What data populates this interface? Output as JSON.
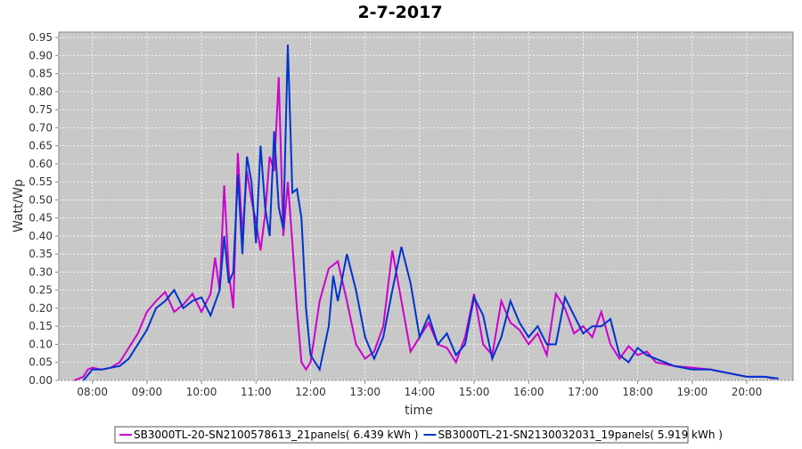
{
  "chart_data": {
    "type": "line",
    "title": "2-7-2017",
    "x_label": "time",
    "y_label": "Watt/Wp",
    "xlim": [
      "07:23",
      "20:51"
    ],
    "xticks": [
      "08:00",
      "09:00",
      "10:00",
      "11:00",
      "12:00",
      "13:00",
      "14:00",
      "15:00",
      "16:00",
      "17:00",
      "18:00",
      "19:00",
      "20:00"
    ],
    "ylim": [
      0,
      0.965
    ],
    "yticks": [
      {
        "value": 0,
        "label": "0.00"
      },
      {
        "value": 0.05,
        "label": "0.05"
      },
      {
        "value": 0.1,
        "label": "0.10"
      },
      {
        "value": 0.15,
        "label": "0.15"
      },
      {
        "value": 0.2,
        "label": "0.20"
      },
      {
        "value": 0.25,
        "label": "0.25"
      },
      {
        "value": 0.3,
        "label": "0.30"
      },
      {
        "value": 0.35,
        "label": "0.35"
      },
      {
        "value": 0.4,
        "label": "0.40"
      },
      {
        "value": 0.45,
        "label": "0.45"
      },
      {
        "value": 0.5,
        "label": "0.50"
      },
      {
        "value": 0.55,
        "label": "0.55"
      },
      {
        "value": 0.6,
        "label": "0.60"
      },
      {
        "value": 0.65,
        "label": "0.65"
      },
      {
        "value": 0.7,
        "label": "0.70"
      },
      {
        "value": 0.75,
        "label": "0.75"
      },
      {
        "value": 0.8,
        "label": "0.80"
      },
      {
        "value": 0.85,
        "label": "0.85"
      },
      {
        "value": 0.9,
        "label": "0.90"
      },
      {
        "value": 0.95,
        "label": "0.95"
      }
    ],
    "grid": true,
    "series": [
      {
        "name": "SB3000TL-20-SN2100578613_21panels( 6.439 kWh )",
        "color": "#cc00cc",
        "x": [
          "07:40",
          "07:50",
          "07:55",
          "08:00",
          "08:10",
          "08:20",
          "08:30",
          "08:40",
          "08:50",
          "09:00",
          "09:10",
          "09:20",
          "09:30",
          "09:40",
          "09:50",
          "10:00",
          "10:10",
          "10:15",
          "10:20",
          "10:25",
          "10:30",
          "10:35",
          "10:40",
          "10:45",
          "10:50",
          "10:55",
          "11:00",
          "11:05",
          "11:10",
          "11:15",
          "11:20",
          "11:25",
          "11:30",
          "11:35",
          "11:40",
          "11:45",
          "11:50",
          "11:55",
          "12:00",
          "12:10",
          "12:20",
          "12:30",
          "12:40",
          "12:50",
          "13:00",
          "13:10",
          "13:20",
          "13:30",
          "13:40",
          "13:50",
          "14:00",
          "14:10",
          "14:20",
          "14:30",
          "14:40",
          "14:50",
          "15:00",
          "15:10",
          "15:20",
          "15:30",
          "15:40",
          "15:50",
          "16:00",
          "16:10",
          "16:20",
          "16:30",
          "16:40",
          "16:50",
          "17:00",
          "17:10",
          "17:20",
          "17:30",
          "17:40",
          "17:50",
          "18:00",
          "18:10",
          "18:20",
          "18:40",
          "19:00",
          "19:20",
          "19:40",
          "20:00",
          "20:20",
          "20:30"
        ],
        "values": [
          0,
          0.01,
          0.03,
          0.035,
          0.03,
          0.035,
          0.05,
          0.09,
          0.13,
          0.19,
          0.22,
          0.245,
          0.19,
          0.21,
          0.24,
          0.19,
          0.24,
          0.34,
          0.25,
          0.54,
          0.3,
          0.2,
          0.63,
          0.4,
          0.58,
          0.5,
          0.44,
          0.36,
          0.46,
          0.62,
          0.58,
          0.84,
          0.4,
          0.55,
          0.38,
          0.2,
          0.05,
          0.03,
          0.05,
          0.22,
          0.31,
          0.33,
          0.22,
          0.1,
          0.06,
          0.08,
          0.15,
          0.36,
          0.22,
          0.08,
          0.12,
          0.16,
          0.1,
          0.09,
          0.05,
          0.12,
          0.24,
          0.1,
          0.07,
          0.22,
          0.16,
          0.14,
          0.1,
          0.13,
          0.07,
          0.24,
          0.2,
          0.13,
          0.15,
          0.12,
          0.19,
          0.1,
          0.06,
          0.095,
          0.07,
          0.08,
          0.05,
          0.04,
          0.035,
          0.03,
          0.02,
          0.01,
          0.01,
          0.005
        ]
      },
      {
        "name": "SB3000TL-21-SN2130032031_19panels( 5.919 kWh )",
        "color": "#0033cc",
        "x": [
          "07:50",
          "08:00",
          "08:10",
          "08:20",
          "08:30",
          "08:40",
          "08:50",
          "09:00",
          "09:10",
          "09:20",
          "09:30",
          "09:40",
          "09:50",
          "10:00",
          "10:10",
          "10:20",
          "10:25",
          "10:30",
          "10:35",
          "10:40",
          "10:45",
          "10:50",
          "10:55",
          "11:00",
          "11:05",
          "11:10",
          "11:15",
          "11:20",
          "11:25",
          "11:30",
          "11:35",
          "11:40",
          "11:45",
          "11:50",
          "11:55",
          "12:00",
          "12:10",
          "12:20",
          "12:25",
          "12:30",
          "12:40",
          "12:50",
          "13:00",
          "13:10",
          "13:20",
          "13:30",
          "13:40",
          "13:50",
          "14:00",
          "14:10",
          "14:20",
          "14:30",
          "14:40",
          "14:50",
          "15:00",
          "15:10",
          "15:20",
          "15:30",
          "15:40",
          "15:50",
          "16:00",
          "16:10",
          "16:20",
          "16:30",
          "16:40",
          "16:50",
          "17:00",
          "17:10",
          "17:20",
          "17:30",
          "17:40",
          "17:50",
          "18:00",
          "18:10",
          "18:20",
          "18:40",
          "19:00",
          "19:20",
          "19:40",
          "20:00",
          "20:20",
          "20:35"
        ],
        "values": [
          0,
          0.03,
          0.03,
          0.035,
          0.04,
          0.06,
          0.1,
          0.14,
          0.2,
          0.22,
          0.25,
          0.2,
          0.22,
          0.23,
          0.18,
          0.25,
          0.4,
          0.27,
          0.3,
          0.57,
          0.35,
          0.62,
          0.55,
          0.38,
          0.65,
          0.48,
          0.4,
          0.69,
          0.48,
          0.42,
          0.93,
          0.52,
          0.53,
          0.45,
          0.2,
          0.07,
          0.03,
          0.15,
          0.29,
          0.22,
          0.35,
          0.25,
          0.12,
          0.06,
          0.12,
          0.25,
          0.37,
          0.27,
          0.12,
          0.18,
          0.1,
          0.13,
          0.07,
          0.1,
          0.23,
          0.18,
          0.06,
          0.12,
          0.22,
          0.16,
          0.12,
          0.15,
          0.1,
          0.1,
          0.23,
          0.18,
          0.13,
          0.15,
          0.15,
          0.17,
          0.07,
          0.05,
          0.09,
          0.07,
          0.06,
          0.04,
          0.03,
          0.03,
          0.02,
          0.01,
          0.01,
          0.005
        ]
      }
    ]
  }
}
